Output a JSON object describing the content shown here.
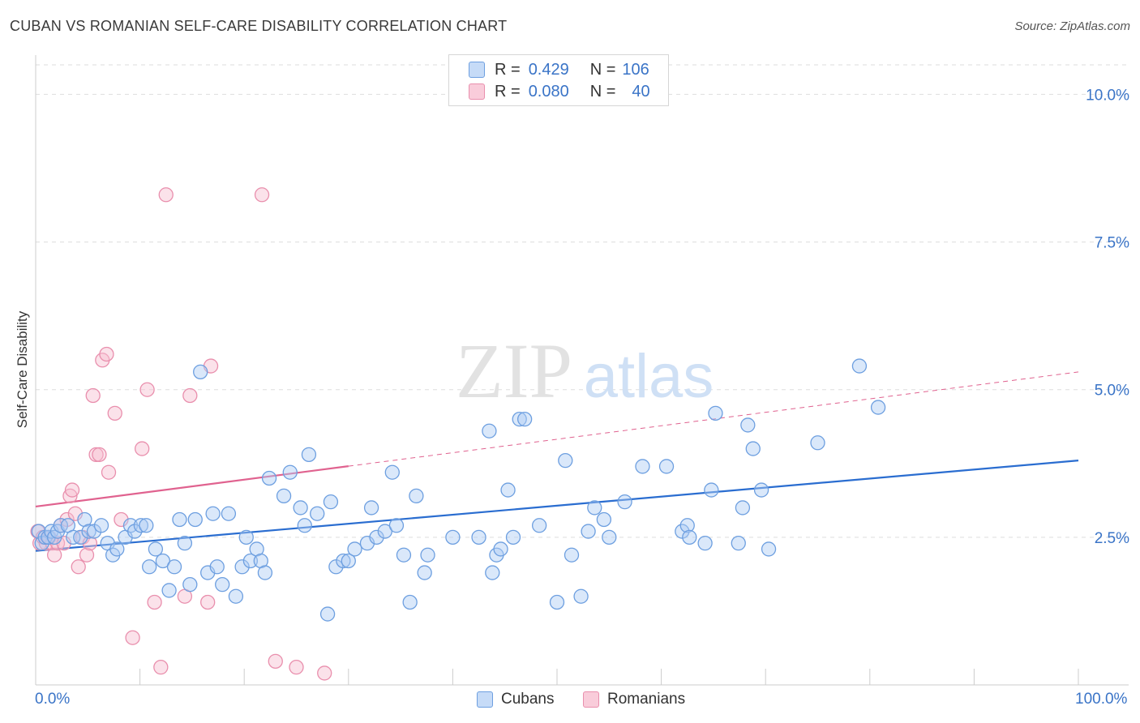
{
  "header": {
    "title": "CUBAN VS ROMANIAN SELF-CARE DISABILITY CORRELATION CHART",
    "source": "Source: ZipAtlas.com"
  },
  "legend": {
    "rows": [
      {
        "r_label": "R =",
        "r_value": "0.429",
        "n_label": "N =",
        "n_value": "106"
      },
      {
        "r_label": "R =",
        "r_value": "0.080",
        "n_label": "N =",
        "n_value": "40"
      }
    ]
  },
  "bottom_legend": {
    "cubans": "Cubans",
    "romanians": "Romanians"
  },
  "axes": {
    "ylabel": "Self-Care Disability",
    "x_min_label": "0.0%",
    "x_max_label": "100.0%"
  },
  "watermark": {
    "zip": "ZIP",
    "atlas": "atlas"
  },
  "colors": {
    "blue_fill": "#aecbf3",
    "blue_stroke": "#6d9fe0",
    "blue_line": "#2a6dd0",
    "pink_fill": "#f7bfd0",
    "pink_stroke": "#e98fad",
    "pink_line": "#e0628f",
    "grid": "#dddddd",
    "tick_text": "#3a74c7"
  },
  "chart_data": {
    "type": "scatter",
    "title": "CUBAN VS ROMANIAN SELF-CARE DISABILITY CORRELATION CHART",
    "xlabel": "",
    "ylabel": "Self-Care Disability",
    "xlim": [
      0,
      100
    ],
    "ylim": [
      0,
      10.5
    ],
    "y_ticks": [
      2.5,
      5.0,
      7.5,
      10.0
    ],
    "y_tick_labels": [
      "2.5%",
      "5.0%",
      "7.5%",
      "10.0%"
    ],
    "x_tick_labels": [
      "0.0%",
      "100.0%"
    ],
    "grid": "horizontal dashed",
    "legend_position": "top-center",
    "series": [
      {
        "name": "Cubans",
        "R": 0.429,
        "N": 106,
        "trend": {
          "x": [
            0,
            100
          ],
          "y": [
            2.27,
            3.8
          ],
          "style": "solid"
        },
        "points": [
          [
            0.3,
            2.6
          ],
          [
            0.6,
            2.4
          ],
          [
            0.9,
            2.5
          ],
          [
            1.2,
            2.5
          ],
          [
            1.5,
            2.6
          ],
          [
            1.8,
            2.5
          ],
          [
            2.1,
            2.6
          ],
          [
            2.4,
            2.7
          ],
          [
            3.1,
            2.7
          ],
          [
            3.6,
            2.5
          ],
          [
            4.3,
            2.5
          ],
          [
            4.7,
            2.8
          ],
          [
            5.1,
            2.6
          ],
          [
            5.6,
            2.6
          ],
          [
            6.3,
            2.7
          ],
          [
            6.9,
            2.4
          ],
          [
            7.4,
            2.2
          ],
          [
            7.8,
            2.3
          ],
          [
            8.6,
            2.5
          ],
          [
            9.1,
            2.7
          ],
          [
            9.5,
            2.6
          ],
          [
            10.1,
            2.7
          ],
          [
            10.6,
            2.7
          ],
          [
            10.9,
            2.0
          ],
          [
            11.5,
            2.3
          ],
          [
            12.2,
            2.1
          ],
          [
            12.8,
            1.6
          ],
          [
            13.3,
            2.0
          ],
          [
            13.8,
            2.8
          ],
          [
            14.3,
            2.4
          ],
          [
            14.8,
            1.7
          ],
          [
            15.3,
            2.8
          ],
          [
            15.8,
            5.3
          ],
          [
            16.5,
            1.9
          ],
          [
            17.0,
            2.9
          ],
          [
            17.4,
            2.0
          ],
          [
            17.9,
            1.7
          ],
          [
            18.5,
            2.9
          ],
          [
            19.2,
            1.5
          ],
          [
            19.8,
            2.0
          ],
          [
            20.2,
            2.5
          ],
          [
            20.6,
            2.1
          ],
          [
            21.2,
            2.3
          ],
          [
            21.6,
            2.1
          ],
          [
            22.0,
            1.9
          ],
          [
            22.4,
            3.5
          ],
          [
            23.8,
            3.2
          ],
          [
            24.4,
            3.6
          ],
          [
            25.4,
            3.0
          ],
          [
            25.8,
            2.7
          ],
          [
            26.2,
            3.9
          ],
          [
            27.0,
            2.9
          ],
          [
            28.0,
            1.2
          ],
          [
            28.3,
            3.1
          ],
          [
            28.8,
            2.0
          ],
          [
            29.5,
            2.1
          ],
          [
            30.0,
            2.1
          ],
          [
            30.6,
            2.3
          ],
          [
            31.8,
            2.4
          ],
          [
            32.2,
            3.0
          ],
          [
            32.7,
            2.5
          ],
          [
            33.5,
            2.6
          ],
          [
            34.2,
            3.6
          ],
          [
            34.6,
            2.7
          ],
          [
            35.3,
            2.2
          ],
          [
            35.9,
            1.4
          ],
          [
            36.5,
            3.2
          ],
          [
            37.3,
            1.9
          ],
          [
            37.6,
            2.2
          ],
          [
            40.0,
            2.5
          ],
          [
            42.5,
            2.5
          ],
          [
            43.5,
            4.3
          ],
          [
            43.8,
            1.9
          ],
          [
            44.2,
            2.2
          ],
          [
            44.6,
            2.3
          ],
          [
            45.3,
            3.3
          ],
          [
            45.8,
            2.5
          ],
          [
            46.4,
            4.5
          ],
          [
            46.9,
            4.5
          ],
          [
            48.3,
            2.7
          ],
          [
            50.0,
            1.4
          ],
          [
            50.8,
            3.8
          ],
          [
            51.4,
            2.2
          ],
          [
            52.3,
            1.5
          ],
          [
            53.0,
            2.6
          ],
          [
            53.6,
            3.0
          ],
          [
            54.5,
            2.8
          ],
          [
            55.0,
            2.5
          ],
          [
            56.5,
            3.1
          ],
          [
            58.2,
            3.7
          ],
          [
            60.5,
            3.7
          ],
          [
            62.0,
            2.6
          ],
          [
            62.5,
            2.7
          ],
          [
            62.7,
            2.5
          ],
          [
            64.2,
            2.4
          ],
          [
            64.8,
            3.3
          ],
          [
            65.2,
            4.6
          ],
          [
            67.4,
            2.4
          ],
          [
            67.8,
            3.0
          ],
          [
            68.3,
            4.4
          ],
          [
            68.8,
            4.0
          ],
          [
            69.6,
            3.3
          ],
          [
            70.3,
            2.3
          ],
          [
            75.0,
            4.1
          ],
          [
            79.0,
            5.4
          ],
          [
            80.8,
            4.7
          ]
        ]
      },
      {
        "name": "Romanians",
        "R": 0.08,
        "N": 40,
        "trend": {
          "x": [
            0,
            100
          ],
          "y": [
            3.02,
            5.3
          ],
          "solid_until_x": 30,
          "style": "solid then dashed"
        },
        "points": [
          [
            0.2,
            2.6
          ],
          [
            0.4,
            2.4
          ],
          [
            0.7,
            2.5
          ],
          [
            1.0,
            2.4
          ],
          [
            1.3,
            2.5
          ],
          [
            1.6,
            2.4
          ],
          [
            1.8,
            2.2
          ],
          [
            2.1,
            2.4
          ],
          [
            2.4,
            2.7
          ],
          [
            2.7,
            2.4
          ],
          [
            3.0,
            2.8
          ],
          [
            3.3,
            3.2
          ],
          [
            3.5,
            3.3
          ],
          [
            3.8,
            2.9
          ],
          [
            4.1,
            2.0
          ],
          [
            4.5,
            2.5
          ],
          [
            4.9,
            2.2
          ],
          [
            5.2,
            2.4
          ],
          [
            5.5,
            4.9
          ],
          [
            5.8,
            3.9
          ],
          [
            6.1,
            3.9
          ],
          [
            6.4,
            5.5
          ],
          [
            6.8,
            5.6
          ],
          [
            7.0,
            3.6
          ],
          [
            7.6,
            4.6
          ],
          [
            8.2,
            2.8
          ],
          [
            9.3,
            0.8
          ],
          [
            10.2,
            4.0
          ],
          [
            10.7,
            5.0
          ],
          [
            11.4,
            1.4
          ],
          [
            12.0,
            0.3
          ],
          [
            12.5,
            8.3
          ],
          [
            14.3,
            1.5
          ],
          [
            14.8,
            4.9
          ],
          [
            16.5,
            1.4
          ],
          [
            16.8,
            5.4
          ],
          [
            21.7,
            8.3
          ],
          [
            23.0,
            0.4
          ],
          [
            25.0,
            0.3
          ],
          [
            27.7,
            0.2
          ]
        ]
      }
    ]
  }
}
